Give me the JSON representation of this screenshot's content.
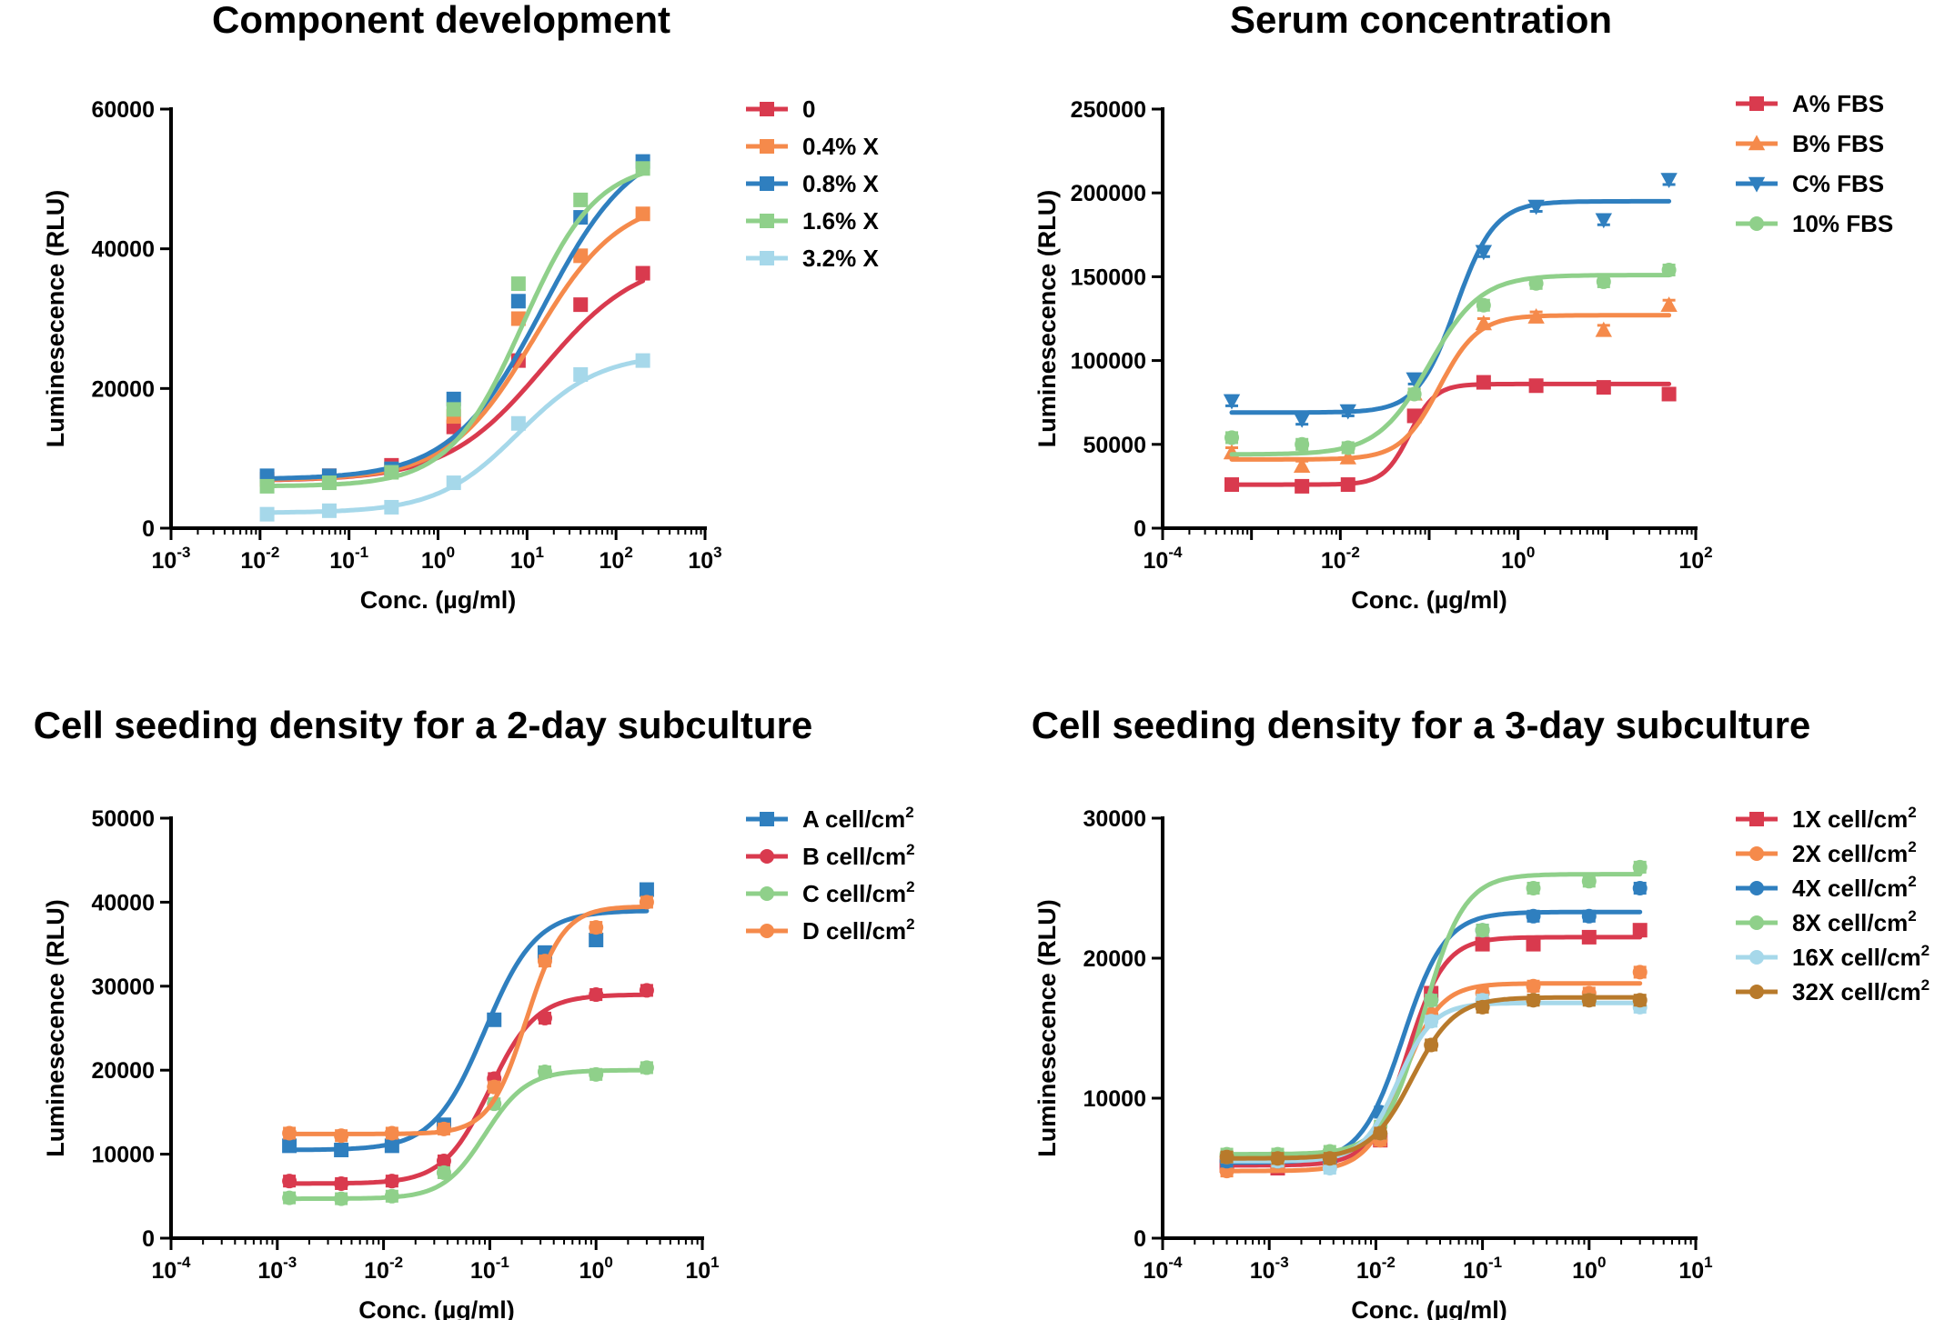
{
  "chart_data": [
    {
      "type": "line",
      "title": "Component development",
      "xlabel": "Conc. (µg/ml)",
      "ylabel": "Luminesecence (RLU)",
      "xscale": "log",
      "xlim_exp": [
        -3,
        3
      ],
      "xticks": [
        {
          "exp": -3,
          "base": "10",
          "sup": "-3"
        },
        {
          "exp": -2,
          "base": "10",
          "sup": "-2"
        },
        {
          "exp": -1,
          "base": "10",
          "sup": "-1"
        },
        {
          "exp": 0,
          "base": "10",
          "sup": "0"
        },
        {
          "exp": 1,
          "base": "10",
          "sup": "1"
        },
        {
          "exp": 2,
          "base": "10",
          "sup": "2"
        },
        {
          "exp": 3,
          "base": "10",
          "sup": "3"
        }
      ],
      "ylim": [
        0,
        60000
      ],
      "yticks": [
        0,
        20000,
        40000,
        60000
      ],
      "legend_position": "right",
      "series": [
        {
          "name": "0",
          "color": "#d93a4e",
          "marker": "square",
          "x": [
            0.012,
            0.06,
            0.3,
            1.5,
            8,
            40,
            200
          ],
          "y": [
            7000,
            7500,
            9000,
            14500,
            24000,
            32000,
            36500
          ],
          "curve": {
            "bottom": 6800,
            "top": 39000,
            "ec50": 15,
            "hill": 0.8
          }
        },
        {
          "name": "0.4% X",
          "color": "#f58a4b",
          "marker": "square",
          "x": [
            0.012,
            0.06,
            0.3,
            1.5,
            8,
            40,
            200
          ],
          "y": [
            7000,
            7500,
            8500,
            16000,
            30000,
            39000,
            45000
          ],
          "curve": {
            "bottom": 6900,
            "top": 47500,
            "ec50": 12,
            "hill": 0.9
          }
        },
        {
          "name": "0.8% X",
          "color": "#2f7fbf",
          "marker": "square",
          "x": [
            0.012,
            0.06,
            0.3,
            1.5,
            8,
            40,
            200
          ],
          "y": [
            7500,
            7500,
            8500,
            18500,
            32500,
            44500,
            52500
          ],
          "curve": {
            "bottom": 7000,
            "top": 56000,
            "ec50": 15,
            "hill": 0.85
          }
        },
        {
          "name": "1.6% X",
          "color": "#8fd08a",
          "marker": "square",
          "x": [
            0.012,
            0.06,
            0.3,
            1.5,
            8,
            40,
            200
          ],
          "y": [
            6000,
            6500,
            8000,
            17000,
            35000,
            47000,
            51500
          ],
          "curve": {
            "bottom": 6000,
            "top": 52500,
            "ec50": 9,
            "hill": 1.05
          }
        },
        {
          "name": "3.2% X",
          "color": "#a6d8ea",
          "marker": "square",
          "x": [
            0.012,
            0.06,
            0.3,
            1.5,
            8,
            40,
            200
          ],
          "y": [
            2000,
            2500,
            3000,
            6500,
            15000,
            22000,
            24000
          ],
          "curve": {
            "bottom": 2200,
            "top": 25000,
            "ec50": 8,
            "hill": 0.95
          }
        }
      ]
    },
    {
      "type": "line",
      "title": "Serum concentration",
      "xlabel": "Conc. (µg/ml)",
      "ylabel": "Luminesecence (RLU)",
      "xscale": "log",
      "xlim_exp": [
        -4,
        2
      ],
      "xticks": [
        {
          "exp": -4,
          "base": "10",
          "sup": "-4"
        },
        {
          "exp": -2,
          "base": "10",
          "sup": "-2"
        },
        {
          "exp": 0,
          "base": "10",
          "sup": "0"
        },
        {
          "exp": 2,
          "base": "10",
          "sup": "2"
        }
      ],
      "ylim": [
        0,
        250000
      ],
      "yticks": [
        0,
        50000,
        100000,
        150000,
        200000,
        250000
      ],
      "legend_position": "right",
      "series": [
        {
          "name": "A% FBS",
          "color": "#d93a4e",
          "marker": "square",
          "x": [
            0.0006,
            0.0037,
            0.0122,
            0.068,
            0.41,
            1.6,
            9.2,
            50
          ],
          "y": [
            26000,
            25000,
            26000,
            67000,
            87000,
            85000,
            84000,
            80000
          ],
          "curve": {
            "bottom": 26000,
            "top": 86000,
            "ec50": 0.06,
            "hill": 3.0
          }
        },
        {
          "name": "B% FBS",
          "color": "#f58a4b",
          "marker": "triangle-up",
          "x": [
            0.0006,
            0.0037,
            0.0122,
            0.068,
            0.41,
            1.6,
            9.2,
            50
          ],
          "y": [
            45000,
            37000,
            42000,
            80000,
            122000,
            126000,
            118000,
            133000
          ],
          "curve": {
            "bottom": 41000,
            "top": 127000,
            "ec50": 0.13,
            "hill": 2.0
          }
        },
        {
          "name": "C% FBS",
          "color": "#2f7fbf",
          "marker": "triangle-down",
          "x": [
            0.0006,
            0.0037,
            0.0122,
            0.068,
            0.41,
            1.6,
            9.2,
            50
          ],
          "y": [
            76000,
            65000,
            70000,
            89000,
            165000,
            192000,
            184000,
            208000
          ],
          "curve": {
            "bottom": 69000,
            "top": 195000,
            "ec50": 0.2,
            "hill": 2.0
          }
        },
        {
          "name": "10% FBS",
          "color": "#8fd08a",
          "marker": "circle",
          "x": [
            0.0006,
            0.0037,
            0.0122,
            0.068,
            0.41,
            1.6,
            9.2,
            50
          ],
          "y": [
            54000,
            50000,
            48000,
            80000,
            133000,
            146000,
            147000,
            154000
          ],
          "curve": {
            "bottom": 44000,
            "top": 151000,
            "ec50": 0.1,
            "hill": 1.5
          }
        }
      ]
    },
    {
      "type": "line",
      "title": "Cell seeding density for a 2-day subculture",
      "xlabel": "Conc. (µg/ml)",
      "ylabel": "Luminesecence (RLU)",
      "xscale": "log",
      "xlim_exp": [
        -4,
        1
      ],
      "xticks": [
        {
          "exp": -4,
          "base": "10",
          "sup": "-4"
        },
        {
          "exp": -3,
          "base": "10",
          "sup": "-3"
        },
        {
          "exp": -2,
          "base": "10",
          "sup": "-2"
        },
        {
          "exp": -1,
          "base": "10",
          "sup": "-1"
        },
        {
          "exp": 0,
          "base": "10",
          "sup": "0"
        },
        {
          "exp": 1,
          "base": "10",
          "sup": "1"
        }
      ],
      "ylim": [
        0,
        50000
      ],
      "yticks": [
        0,
        10000,
        20000,
        30000,
        40000,
        50000
      ],
      "legend_position": "right",
      "series": [
        {
          "name": "A cell/cm",
          "sup": "2",
          "color": "#2f7fbf",
          "marker": "square",
          "x": [
            0.0013,
            0.004,
            0.012,
            0.037,
            0.11,
            0.33,
            1.0,
            3.0
          ],
          "y": [
            11000,
            10500,
            11000,
            13500,
            26000,
            34000,
            35500,
            41500
          ],
          "curve": {
            "bottom": 10500,
            "top": 39000,
            "ec50": 0.09,
            "hill": 1.8
          }
        },
        {
          "name": "B cell/cm",
          "sup": "2",
          "color": "#d93a4e",
          "marker": "circle",
          "x": [
            0.0013,
            0.004,
            0.012,
            0.037,
            0.11,
            0.33,
            1.0,
            3.0
          ],
          "y": [
            6800,
            6500,
            6800,
            9200,
            19000,
            26200,
            29000,
            29500
          ],
          "curve": {
            "bottom": 6500,
            "top": 29000,
            "ec50": 0.1,
            "hill": 2.0
          }
        },
        {
          "name": "C cell/cm",
          "sup": "2",
          "color": "#8fd08a",
          "marker": "circle",
          "x": [
            0.0013,
            0.004,
            0.012,
            0.037,
            0.11,
            0.33,
            1.0,
            3.0
          ],
          "y": [
            4800,
            4700,
            5000,
            7800,
            16000,
            19800,
            19500,
            20300
          ],
          "curve": {
            "bottom": 4700,
            "top": 20000,
            "ec50": 0.09,
            "hill": 2.2
          }
        },
        {
          "name": "D cell/cm",
          "sup": "2",
          "color": "#f58a4b",
          "marker": "circle",
          "x": [
            0.0013,
            0.004,
            0.012,
            0.037,
            0.11,
            0.33,
            1.0,
            3.0
          ],
          "y": [
            12500,
            12200,
            12500,
            13000,
            18000,
            33000,
            37000,
            40000
          ],
          "curve": {
            "bottom": 12400,
            "top": 39500,
            "ec50": 0.22,
            "hill": 2.5
          }
        }
      ]
    },
    {
      "type": "line",
      "title": "Cell seeding density for a 3-day subculture",
      "xlabel": "Conc. (µg/ml)",
      "ylabel": "Luminesecence (RLU)",
      "xscale": "log",
      "xlim_exp": [
        -4,
        1
      ],
      "xticks": [
        {
          "exp": -4,
          "base": "10",
          "sup": "-4"
        },
        {
          "exp": -3,
          "base": "10",
          "sup": "-3"
        },
        {
          "exp": -2,
          "base": "10",
          "sup": "-2"
        },
        {
          "exp": -1,
          "base": "10",
          "sup": "-1"
        },
        {
          "exp": 0,
          "base": "10",
          "sup": "0"
        },
        {
          "exp": 1,
          "base": "10",
          "sup": "1"
        }
      ],
      "ylim": [
        0,
        30000
      ],
      "yticks": [
        0,
        10000,
        20000,
        30000
      ],
      "legend_position": "right",
      "series": [
        {
          "name": "1X cell/cm",
          "sup": "2",
          "color": "#d93a4e",
          "marker": "square",
          "x": [
            0.00013,
            0.0004,
            0.0012,
            0.0037,
            0.011,
            0.033,
            0.1,
            0.3,
            1.0,
            3.0
          ],
          "y": [
            null,
            5200,
            5000,
            5500,
            7000,
            17500,
            21000,
            21000,
            21500,
            22000
          ],
          "curve": {
            "bottom": 5200,
            "top": 21500,
            "ec50": 0.02,
            "hill": 2.5
          }
        },
        {
          "name": "2X cell/cm",
          "sup": "2",
          "color": "#f58a4b",
          "marker": "circle",
          "x": [
            0.00013,
            0.0004,
            0.0012,
            0.0037,
            0.011,
            0.033,
            0.1,
            0.3,
            1.0,
            3.0
          ],
          "y": [
            null,
            4800,
            5200,
            5300,
            7000,
            16000,
            17500,
            18000,
            17500,
            19000
          ],
          "curve": {
            "bottom": 4800,
            "top": 18200,
            "ec50": 0.018,
            "hill": 2.5
          }
        },
        {
          "name": "4X cell/cm",
          "sup": "2",
          "color": "#2f7fbf",
          "marker": "circle",
          "x": [
            0.00013,
            0.0004,
            0.0012,
            0.0037,
            0.011,
            0.033,
            0.1,
            0.3,
            1.0,
            3.0
          ],
          "y": [
            null,
            5500,
            5500,
            5500,
            9000,
            17000,
            22000,
            23000,
            23000,
            25000
          ],
          "curve": {
            "bottom": 5400,
            "top": 23300,
            "ec50": 0.018,
            "hill": 2.2
          }
        },
        {
          "name": "8X cell/cm",
          "sup": "2",
          "color": "#8fd08a",
          "marker": "circle",
          "x": [
            0.00013,
            0.0004,
            0.0012,
            0.0037,
            0.011,
            0.033,
            0.1,
            0.3,
            1.0,
            3.0
          ],
          "y": [
            null,
            6000,
            6000,
            6200,
            8000,
            17000,
            22000,
            25000,
            25500,
            26500
          ],
          "curve": {
            "bottom": 6000,
            "top": 26000,
            "ec50": 0.028,
            "hill": 2.3
          }
        },
        {
          "name": "16X cell/cm",
          "sup": "2",
          "color": "#a6d8ea",
          "marker": "circle",
          "x": [
            0.00013,
            0.0004,
            0.0012,
            0.0037,
            0.011,
            0.033,
            0.1,
            0.3,
            1.0,
            3.0
          ],
          "y": [
            null,
            5800,
            5500,
            5000,
            7500,
            15500,
            17000,
            17000,
            17000,
            16500
          ],
          "curve": {
            "bottom": 5500,
            "top": 16800,
            "ec50": 0.016,
            "hill": 2.6
          }
        },
        {
          "name": "32X cell/cm",
          "sup": "2",
          "color": "#b87a2b",
          "marker": "circle",
          "x": [
            0.00013,
            0.0004,
            0.0012,
            0.0037,
            0.011,
            0.033,
            0.1,
            0.3,
            1.0,
            3.0
          ],
          "y": [
            null,
            5800,
            5700,
            5700,
            7500,
            13800,
            16500,
            17000,
            17000,
            17000
          ],
          "curve": {
            "bottom": 5700,
            "top": 17200,
            "ec50": 0.022,
            "hill": 2.2
          }
        }
      ]
    }
  ]
}
